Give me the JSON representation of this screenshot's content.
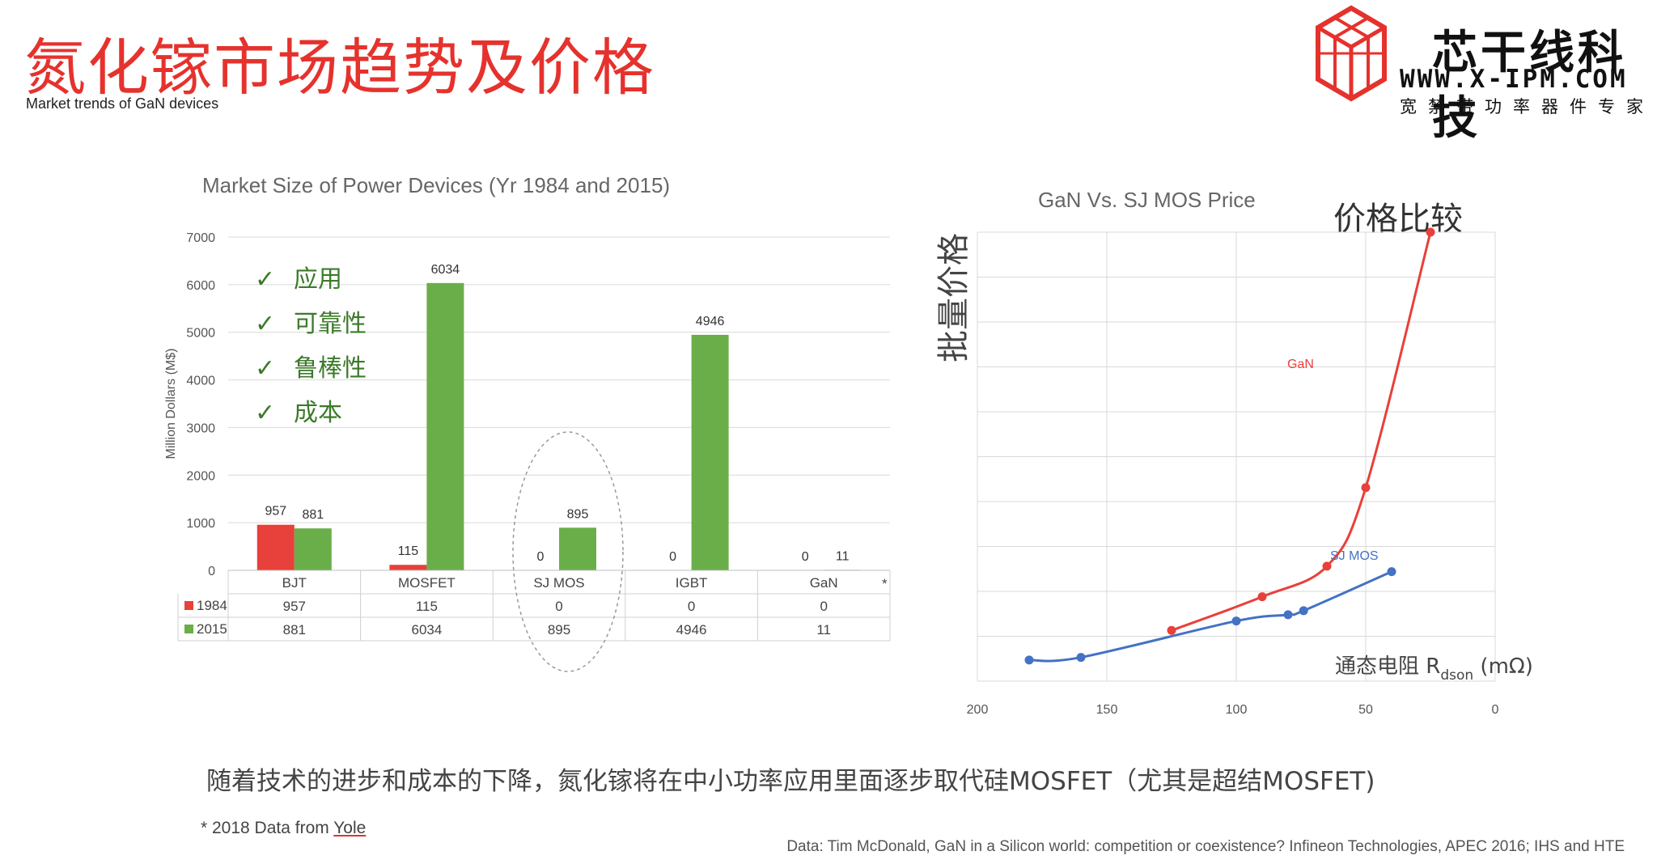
{
  "header": {
    "title": "氮化镓市场趋势及价格",
    "subtitle": "Market trends of GaN devices"
  },
  "logo": {
    "name": "芯干线科技",
    "url": "WWW.X-IPM.COM",
    "tagline": "宽禁带功率器件专家",
    "color": "#e5322d"
  },
  "checklist": {
    "mark": "✓",
    "items": [
      "应用",
      "可靠性",
      "鲁棒性",
      "成本"
    ]
  },
  "conclusion": "随着技术的进步和成本的下降，氮化镓将在中小功率应用里面逐步取代硅MOSFET（尤其是超结MOSFET)",
  "footnote": {
    "prefix": "* 2018 Data from ",
    "link": "Yole"
  },
  "source": "Data: Tim McDonald, GaN in a Silicon world: competition or coexistence? Infineon Technologies, APEC 2016; IHS and HTE",
  "chart_data": [
    {
      "type": "bar",
      "title": "Market Size of Power Devices (Yr 1984 and 2015)",
      "ylabel": "Million Dollars (M$)",
      "ylim": [
        0,
        7000
      ],
      "yticks": [
        0,
        1000,
        2000,
        3000,
        4000,
        5000,
        6000,
        7000
      ],
      "categories": [
        "BJT",
        "MOSFET",
        "SJ MOS",
        "IGBT",
        "GaN"
      ],
      "series": [
        {
          "name": "1984",
          "color": "#e8403a",
          "values": [
            957,
            115,
            0,
            0,
            0
          ]
        },
        {
          "name": "2015",
          "color": "#6aae4a",
          "values": [
            881,
            6034,
            895,
            4946,
            11
          ]
        }
      ],
      "gan_note": "*",
      "legend": "data-table",
      "grid": true
    },
    {
      "type": "line",
      "title": "GaN Vs. SJ MOS Price",
      "annotation": "价格比较",
      "ylabel": "批量价格",
      "xlabel_main": "通态电阻 R",
      "xlabel_sub": "dson",
      "xlabel_unit": " (mΩ)",
      "xlim": [
        200,
        0
      ],
      "xticks": [
        200,
        150,
        100,
        50,
        0
      ],
      "ylim": [
        0,
        1
      ],
      "grid": true,
      "series": [
        {
          "name": "GaN",
          "color": "#e8403a",
          "x": [
            125,
            90,
            65,
            50,
            25
          ],
          "y": [
            0.113,
            0.188,
            0.256,
            0.431,
            1.0
          ]
        },
        {
          "name": "SJ MOS",
          "color": "#4472c4",
          "x": [
            180,
            160,
            100,
            80,
            74,
            40
          ],
          "y": [
            0.047,
            0.053,
            0.134,
            0.148,
            0.157,
            0.244
          ]
        }
      ]
    }
  ]
}
